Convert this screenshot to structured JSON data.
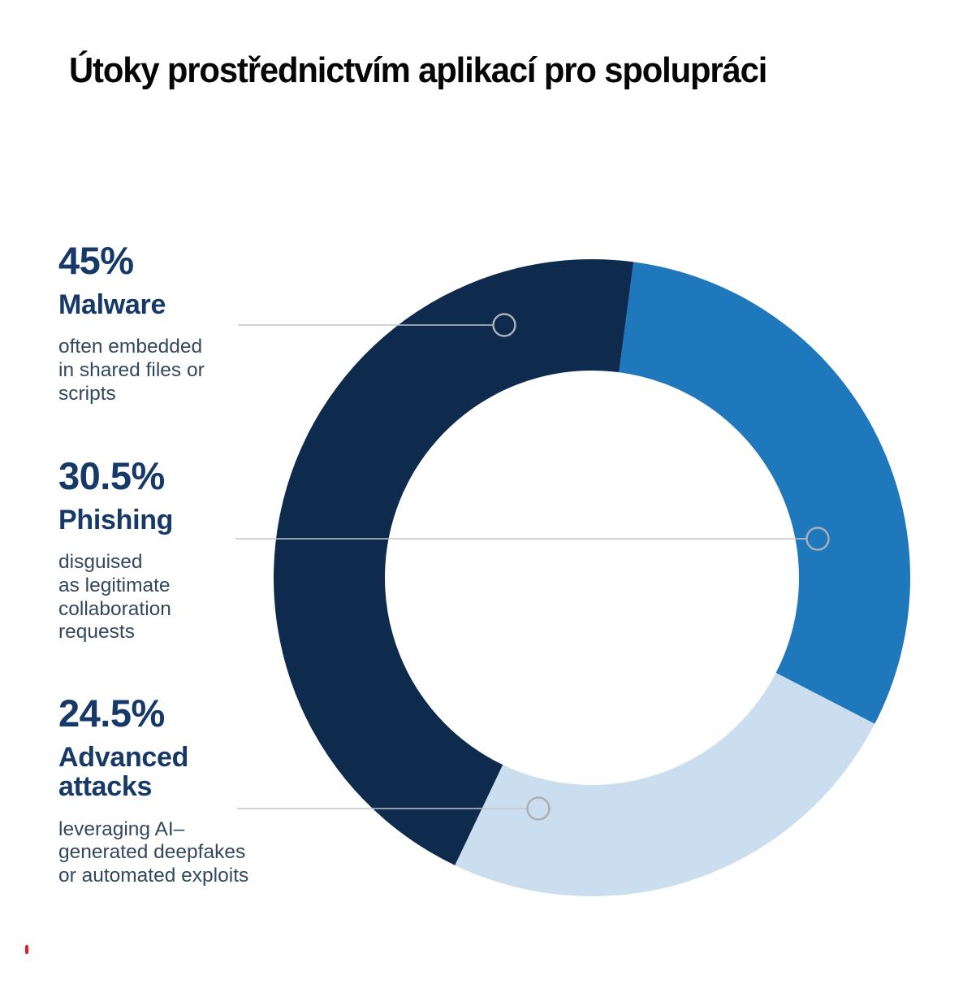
{
  "title": "Útoky prostřednictvím aplikací pro spolupráci",
  "chart_data": {
    "type": "pie",
    "subtype": "donut",
    "title": "Útoky prostřednictvím aplikací pro spolupráci",
    "units": "%",
    "start_angle_deg": 7.5,
    "donut_hole_ratio": 0.65,
    "legend_position": "left-callouts",
    "grid": false,
    "leader_line_color": "#C2C6C9",
    "marker_stroke_color": "#A9B0B5",
    "segments": [
      {
        "label": "Malware",
        "pct_label": "45%",
        "value": 45,
        "description": "often embedded\nin shared files or\nscripts",
        "color": "#0E2A4C"
      },
      {
        "label": "Phishing",
        "pct_label": "30.5%",
        "value": 30.5,
        "description": "disguised\nas legitimate\ncollaboration\nrequests",
        "color": "#1F78BB"
      },
      {
        "label": "Advanced\nattacks",
        "pct_label": "24.5%",
        "value": 24.5,
        "description": "leveraging AI–\ngenerated deepfakes\nor automated exploits",
        "color": "#CBDEEF"
      }
    ]
  }
}
